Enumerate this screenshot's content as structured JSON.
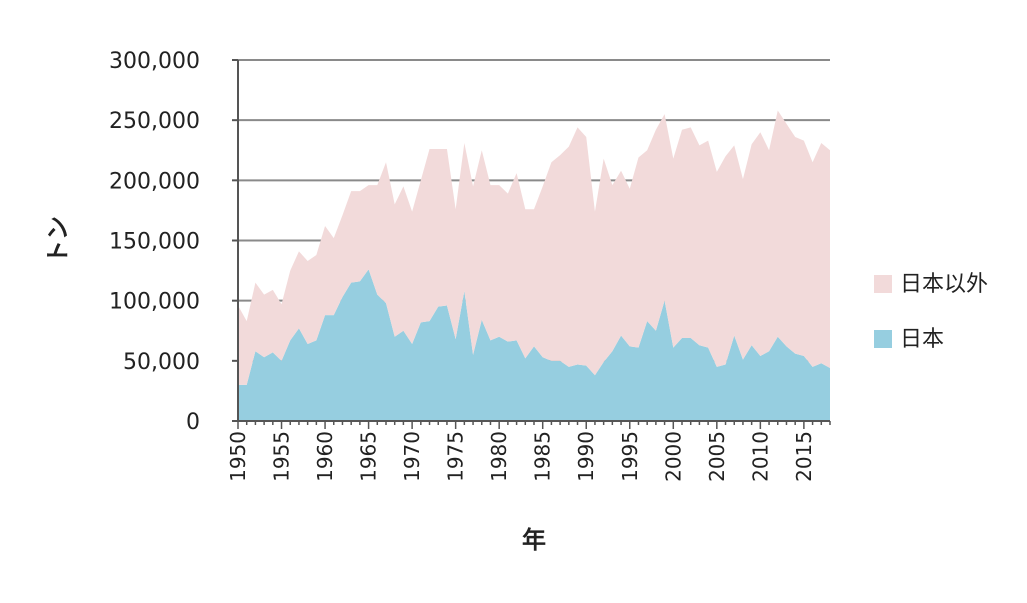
{
  "chart_data": {
    "type": "area",
    "stacked": true,
    "xlabel": "年",
    "ylabel": "トン",
    "xlim": [
      1950,
      2018
    ],
    "ylim": [
      0,
      300000
    ],
    "y_ticks": [
      "0",
      "50,000",
      "100,000",
      "150,000",
      "200,000",
      "250,000",
      "300,000"
    ],
    "x_ticks": [
      "1950",
      "1955",
      "1960",
      "1965",
      "1970",
      "1975",
      "1980",
      "1985",
      "1990",
      "1995",
      "2000",
      "2005",
      "2010",
      "2015"
    ],
    "grid": "horizontal",
    "legend_position": "right",
    "x": [
      1950,
      1951,
      1952,
      1953,
      1954,
      1955,
      1956,
      1957,
      1958,
      1959,
      1960,
      1961,
      1962,
      1963,
      1964,
      1965,
      1966,
      1967,
      1968,
      1969,
      1970,
      1971,
      1972,
      1973,
      1974,
      1975,
      1976,
      1977,
      1978,
      1979,
      1980,
      1981,
      1982,
      1983,
      1984,
      1985,
      1986,
      1987,
      1988,
      1989,
      1990,
      1991,
      1992,
      1993,
      1994,
      1995,
      1996,
      1997,
      1998,
      1999,
      2000,
      2001,
      2002,
      2003,
      2004,
      2005,
      2006,
      2007,
      2008,
      2009,
      2010,
      2011,
      2012,
      2013,
      2014,
      2015,
      2016,
      2017,
      2018
    ],
    "series": [
      {
        "name": "日本",
        "color": "#96cee0",
        "values": [
          30000,
          30000,
          58000,
          53000,
          57000,
          50000,
          67000,
          77000,
          64000,
          67000,
          88000,
          88000,
          103000,
          115000,
          116000,
          126000,
          105000,
          98000,
          70000,
          75000,
          64000,
          82000,
          83000,
          95000,
          96000,
          68000,
          108000,
          55000,
          84000,
          67000,
          70000,
          66000,
          67000,
          52000,
          62000,
          53000,
          50000,
          50000,
          45000,
          47000,
          46000,
          38000,
          49000,
          58000,
          71000,
          62000,
          61000,
          83000,
          75000,
          100000,
          61000,
          69000,
          69000,
          63000,
          61000,
          45000,
          47000,
          71000,
          51000,
          63000,
          54000,
          58000,
          70000,
          62000,
          56000,
          54000,
          45000,
          48000,
          44000
        ]
      },
      {
        "name": "日本以外",
        "color": "#f2dada",
        "values": [
          66000,
          53000,
          57000,
          52000,
          52000,
          47000,
          58000,
          64000,
          69000,
          71000,
          74000,
          64000,
          68000,
          76000,
          75000,
          70000,
          91000,
          117000,
          110000,
          120000,
          110000,
          118000,
          143000,
          131000,
          130000,
          108000,
          123000,
          140000,
          141000,
          129000,
          126000,
          123000,
          139000,
          124000,
          114000,
          142000,
          165000,
          171000,
          183000,
          197000,
          190000,
          136000,
          169000,
          138000,
          137000,
          131000,
          158000,
          142000,
          167000,
          155000,
          157000,
          173000,
          175000,
          166000,
          172000,
          162000,
          173000,
          158000,
          150000,
          167000,
          186000,
          167000,
          188000,
          185000,
          180000,
          179000,
          170000,
          183000,
          181000
        ]
      }
    ]
  }
}
